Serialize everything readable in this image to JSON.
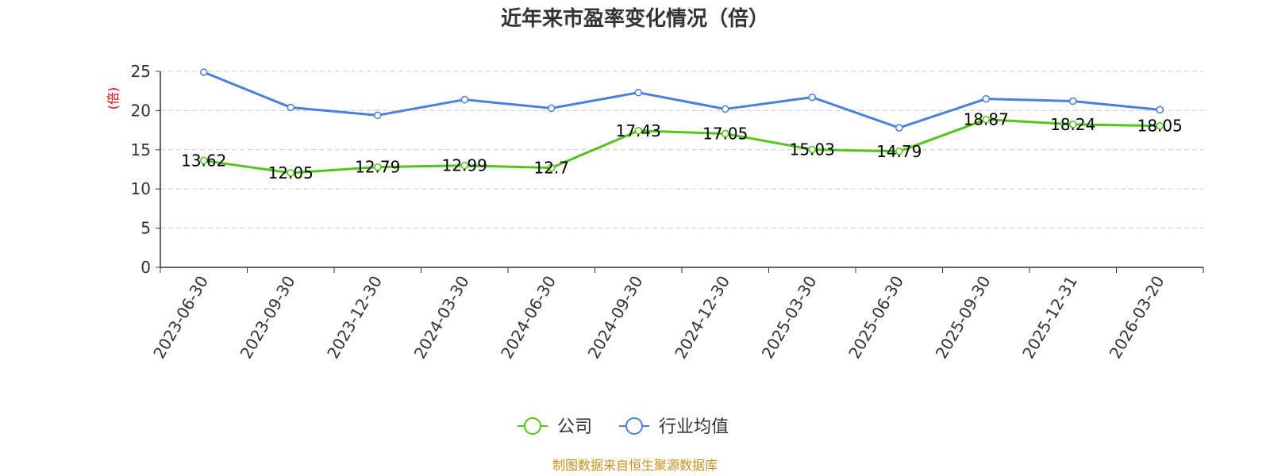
{
  "chart_data": {
    "type": "line",
    "title": "近年来市盈率变化情况（倍）",
    "ylabel": "(倍)",
    "xlabel": "",
    "ylim": [
      0,
      25
    ],
    "yticks": [
      0,
      5,
      10,
      15,
      20,
      25
    ],
    "grid": true,
    "legend_position": "bottom",
    "categories": [
      "2023-06-30",
      "2023-09-30",
      "2023-12-30",
      "2024-03-30",
      "2024-06-30",
      "2024-09-30",
      "2024-12-30",
      "2025-03-30",
      "2025-06-30",
      "2025-09-30",
      "2025-12-31",
      "2026-03-20"
    ],
    "series": [
      {
        "name": "公司",
        "color": "#52c41a",
        "values": [
          13.62,
          12.05,
          12.79,
          12.99,
          12.7,
          17.43,
          17.05,
          15.03,
          14.79,
          18.87,
          18.24,
          18.05
        ],
        "data_labels": [
          "13.62",
          "12.05",
          "12.79",
          "12.99",
          "12.7",
          "17.43",
          "17.05",
          "15.03",
          "14.79",
          "18.87",
          "18.24",
          "18.05"
        ]
      },
      {
        "name": "行业均值",
        "color": "#4a7fdc",
        "values": [
          24.9,
          20.4,
          19.4,
          21.4,
          20.3,
          22.3,
          20.2,
          21.7,
          17.8,
          21.5,
          21.2,
          20.1
        ]
      }
    ],
    "source": "制图数据来自恒生聚源数据库"
  }
}
